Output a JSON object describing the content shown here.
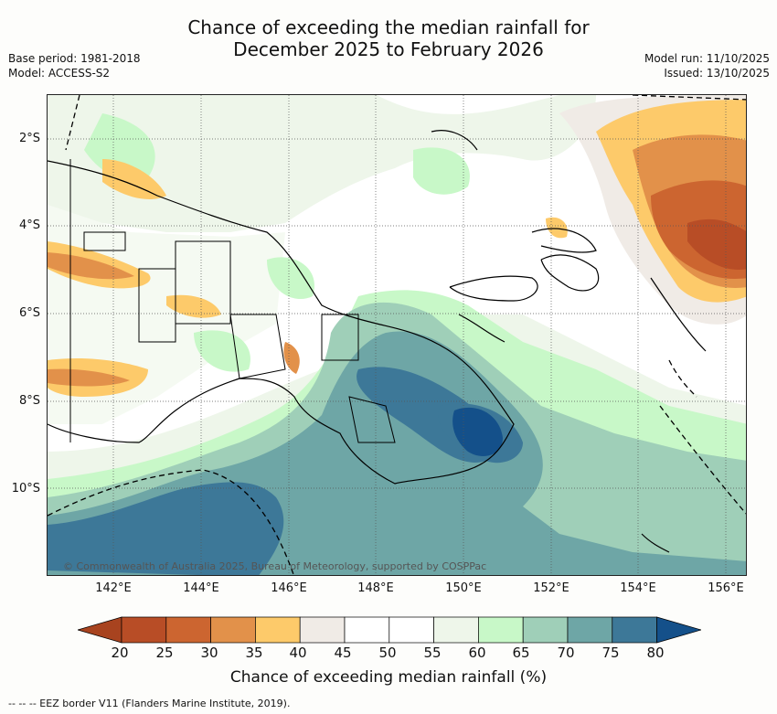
{
  "header": {
    "title_line1": "Chance of exceeding the median rainfall for",
    "title_line2": "December 2025 to February 2026",
    "base_period": "Base period: 1981-2018",
    "model": "Model: ACCESS-S2",
    "model_run": "Model run: 11/10/2025",
    "issued": "Issued: 13/10/2025"
  },
  "map": {
    "latitude_labels": [
      "2°S",
      "4°S",
      "6°S",
      "8°S",
      "10°S"
    ],
    "longitude_labels": [
      "142°E",
      "144°E",
      "146°E",
      "148°E",
      "150°E",
      "152°E",
      "154°E",
      "156°E"
    ],
    "copyright": "© Commonwealth of Australia 2025, Bureau of Meteorology, supported by COSPPac"
  },
  "colorbar": {
    "ticks": [
      "20",
      "25",
      "30",
      "35",
      "40",
      "45",
      "50",
      "55",
      "60",
      "65",
      "70",
      "75",
      "80"
    ],
    "colors": [
      "#a8431f",
      "#b84d26",
      "#cc6530",
      "#e2914a",
      "#fdca6a",
      "#f0ebe6",
      "#ffffff",
      "#ffffff",
      "#eef6ea",
      "#c8f8c8",
      "#9fcfb8",
      "#6ea6a6",
      "#3d7898",
      "#14508a"
    ],
    "label": "Chance of exceeding median rainfall (%)"
  },
  "legend": {
    "eez": "-- -- -- EEZ border V11 (Flanders Marine Institute, 2019)."
  }
}
